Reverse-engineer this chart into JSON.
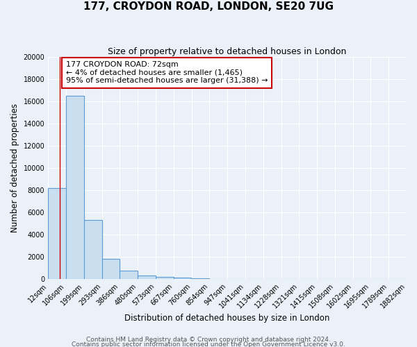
{
  "title": "177, CROYDON ROAD, LONDON, SE20 7UG",
  "subtitle": "Size of property relative to detached houses in London",
  "xlabel": "Distribution of detached houses by size in London",
  "ylabel": "Number of detached properties",
  "bar_edges": [
    12,
    106,
    199,
    293,
    386,
    480,
    573,
    667,
    760,
    854,
    947,
    1041,
    1134,
    1228,
    1321,
    1415,
    1508,
    1602,
    1695,
    1789,
    1882
  ],
  "bar_heights": [
    8200,
    16500,
    5300,
    1850,
    750,
    320,
    200,
    150,
    100,
    0,
    0,
    0,
    0,
    0,
    0,
    0,
    0,
    0,
    0,
    0
  ],
  "bar_color": "#c9dff0",
  "bar_edge_color": "#5b9bd5",
  "vline_x": 72,
  "vline_color": "#cc0000",
  "annotation_line1": "177 CROYDON ROAD: 72sqm",
  "annotation_line2": "← 4% of detached houses are smaller (1,465)",
  "annotation_line3": "95% of semi-detached houses are larger (31,388) →",
  "annotation_box_color": "#ffffff",
  "annotation_box_edge_color": "#cc0000",
  "ylim": [
    0,
    20000
  ],
  "yticks": [
    0,
    2000,
    4000,
    6000,
    8000,
    10000,
    12000,
    14000,
    16000,
    18000,
    20000
  ],
  "tick_labels": [
    "12sqm",
    "106sqm",
    "199sqm",
    "293sqm",
    "386sqm",
    "480sqm",
    "573sqm",
    "667sqm",
    "760sqm",
    "854sqm",
    "947sqm",
    "1041sqm",
    "1134sqm",
    "1228sqm",
    "1321sqm",
    "1415sqm",
    "1508sqm",
    "1602sqm",
    "1695sqm",
    "1789sqm",
    "1882sqm"
  ],
  "footer_line1": "Contains HM Land Registry data © Crown copyright and database right 2024.",
  "footer_line2": "Contains public sector information licensed under the Open Government Licence v3.0.",
  "bg_color": "#eaf1f8",
  "plot_bg_color": "#eaf1f8",
  "grid_color": "#ffffff",
  "title_fontsize": 11,
  "subtitle_fontsize": 9,
  "axis_label_fontsize": 8.5,
  "tick_fontsize": 7,
  "footer_fontsize": 6.5
}
